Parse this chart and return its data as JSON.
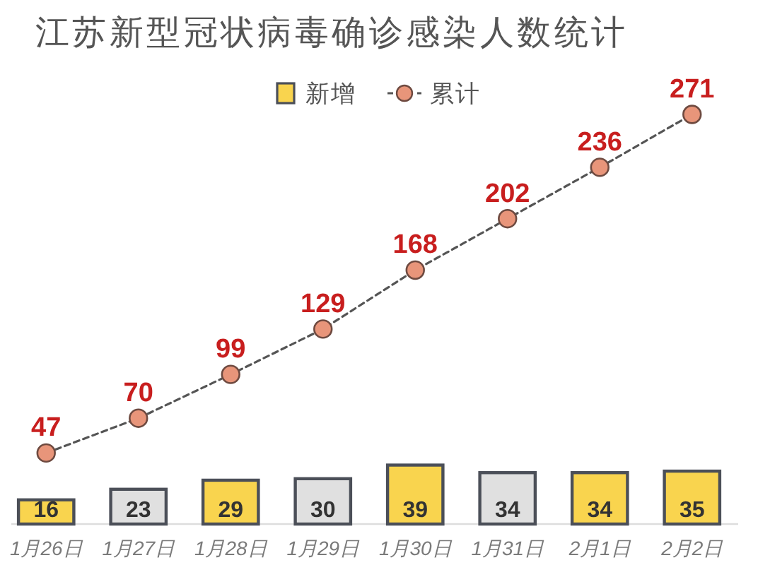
{
  "chart_data": {
    "type": "bar",
    "title": "江苏新型冠状病毒确诊感染人数统计",
    "categories": [
      "1月26日",
      "1月27日",
      "1月28日",
      "1月29日",
      "1月30日",
      "1月31日",
      "2月1日",
      "2月2日"
    ],
    "series": [
      {
        "name": "新增",
        "color": "#f9d44e",
        "colors": [
          "#f9d44e",
          "#e0e0e0",
          "#f9d44e",
          "#e0e0e0",
          "#f9d44e",
          "#e0e0e0",
          "#f9d44e",
          "#f9d44e"
        ],
        "values": [
          16,
          23,
          29,
          30,
          39,
          34,
          34,
          35
        ]
      },
      {
        "name": "累计",
        "type": "line",
        "color": "#e8957a",
        "marker": "circle",
        "line_style": "dashed",
        "values": [
          47,
          70,
          99,
          129,
          168,
          202,
          236,
          271
        ]
      }
    ],
    "tick_labels": "x",
    "data_labels": true,
    "legend": "top"
  }
}
